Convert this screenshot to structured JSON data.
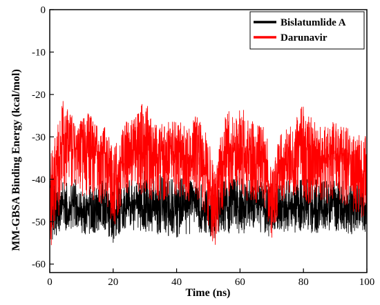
{
  "chart_data": {
    "type": "line",
    "title": "",
    "xlabel": "Time (ns)",
    "ylabel": "MM-GBSA Binding Energy (kcal/mol)",
    "xlim": [
      0,
      100
    ],
    "ylim": [
      -62,
      0
    ],
    "x_ticks": [
      0,
      20,
      40,
      60,
      80,
      100
    ],
    "y_ticks": [
      0,
      -10,
      -20,
      -30,
      -40,
      -50,
      -60
    ],
    "grid": false,
    "legend_position": "top-right",
    "series": [
      {
        "name": "Bislatumlide A",
        "color": "#000000",
        "x": [
          0,
          2,
          4,
          6,
          8,
          10,
          12,
          14,
          16,
          18,
          20,
          22,
          24,
          26,
          28,
          30,
          32,
          34,
          36,
          38,
          40,
          42,
          44,
          46,
          48,
          50,
          52,
          54,
          56,
          58,
          60,
          62,
          64,
          66,
          68,
          70,
          72,
          74,
          76,
          78,
          80,
          82,
          84,
          86,
          88,
          90,
          92,
          94,
          96,
          98,
          100
        ],
        "center": [
          -44,
          -47,
          -46,
          -47,
          -46,
          -47,
          -46,
          -47,
          -46,
          -47,
          -49,
          -46,
          -47,
          -46,
          -46,
          -46,
          -46,
          -47,
          -46,
          -47,
          -47,
          -46,
          -46,
          -46,
          -46,
          -47,
          -49,
          -46,
          -46,
          -46,
          -46,
          -47,
          -46,
          -46,
          -47,
          -48,
          -46,
          -47,
          -46,
          -46,
          -46,
          -46,
          -47,
          -46,
          -46,
          -47,
          -46,
          -46,
          -47,
          -46,
          -46
        ],
        "high": [
          -38,
          -42,
          -40,
          -41,
          -40,
          -42,
          -41,
          -42,
          -40,
          -41,
          -43,
          -40,
          -40,
          -40,
          -39,
          -38,
          -40,
          -39,
          -39,
          -40,
          -40,
          -39,
          -40,
          -41,
          -40,
          -41,
          -44,
          -40,
          -40,
          -39,
          -39,
          -40,
          -40,
          -40,
          -41,
          -42,
          -40,
          -40,
          -40,
          -40,
          -39,
          -39,
          -40,
          -40,
          -40,
          -40,
          -40,
          -40,
          -40,
          -40,
          -40
        ],
        "low": [
          -55,
          -54,
          -52,
          -53,
          -52,
          -53,
          -53,
          -53,
          -52,
          -53,
          -55,
          -53,
          -53,
          -52,
          -52,
          -53,
          -53,
          -53,
          -52,
          -54,
          -54,
          -53,
          -53,
          -52,
          -53,
          -53,
          -55,
          -52,
          -53,
          -52,
          -53,
          -53,
          -52,
          -53,
          -53,
          -54,
          -52,
          -53,
          -52,
          -53,
          -52,
          -53,
          -53,
          -53,
          -52,
          -53,
          -52,
          -53,
          -53,
          -52,
          -53
        ]
      },
      {
        "name": "Darunavir",
        "color": "#ff0000",
        "x": [
          0,
          2,
          4,
          6,
          8,
          10,
          12,
          14,
          16,
          18,
          20,
          22,
          24,
          26,
          28,
          30,
          32,
          34,
          36,
          38,
          40,
          42,
          44,
          46,
          48,
          50,
          52,
          54,
          56,
          58,
          60,
          62,
          64,
          66,
          68,
          70,
          72,
          74,
          76,
          78,
          80,
          82,
          84,
          86,
          88,
          90,
          92,
          94,
          96,
          98,
          100
        ],
        "center": [
          -46,
          -38,
          -32,
          -32,
          -33,
          -33,
          -32,
          -33,
          -34,
          -35,
          -42,
          -38,
          -34,
          -33,
          -33,
          -31,
          -34,
          -35,
          -35,
          -34,
          -34,
          -35,
          -36,
          -33,
          -34,
          -40,
          -48,
          -37,
          -32,
          -33,
          -32,
          -33,
          -34,
          -35,
          -36,
          -46,
          -37,
          -35,
          -34,
          -33,
          -32,
          -33,
          -35,
          -35,
          -34,
          -34,
          -35,
          -36,
          -37,
          -38,
          -38
        ],
        "high": [
          -35,
          -29,
          -21,
          -24,
          -25,
          -25,
          -24,
          -26,
          -27,
          -28,
          -33,
          -30,
          -26,
          -25,
          -24,
          -20,
          -26,
          -27,
          -27,
          -26,
          -26,
          -27,
          -28,
          -24,
          -26,
          -30,
          -38,
          -29,
          -22,
          -26,
          -22,
          -25,
          -26,
          -27,
          -28,
          -36,
          -30,
          -27,
          -26,
          -25,
          -20,
          -24,
          -27,
          -28,
          -27,
          -26,
          -27,
          -28,
          -30,
          -29,
          -30
        ],
        "low": [
          -57,
          -52,
          -44,
          -42,
          -42,
          -44,
          -44,
          -45,
          -46,
          -46,
          -52,
          -48,
          -44,
          -42,
          -44,
          -43,
          -45,
          -45,
          -45,
          -44,
          -44,
          -45,
          -46,
          -45,
          -47,
          -51,
          -57,
          -48,
          -45,
          -43,
          -44,
          -45,
          -45,
          -46,
          -47,
          -54,
          -48,
          -46,
          -45,
          -44,
          -45,
          -46,
          -47,
          -46,
          -46,
          -45,
          -46,
          -47,
          -48,
          -49,
          -49
        ]
      }
    ]
  }
}
